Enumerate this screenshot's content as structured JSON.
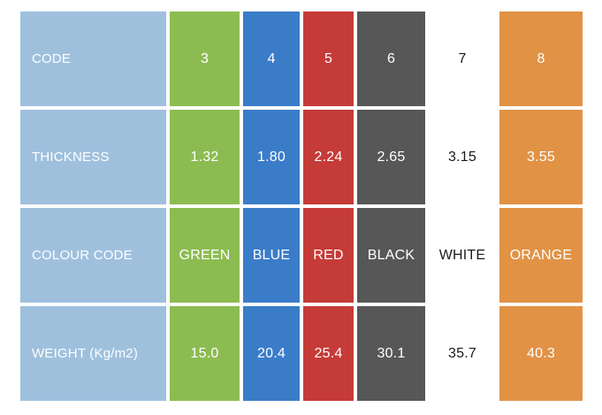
{
  "chart_data": {
    "type": "table",
    "title": "",
    "rows": [
      {
        "header": "CODE",
        "values": [
          "3",
          "4",
          "5",
          "6",
          "7",
          "8"
        ]
      },
      {
        "header": "THICKNESS",
        "values": [
          "1.32",
          "1.80",
          "2.24",
          "2.65",
          "3.15",
          "3.55"
        ]
      },
      {
        "header": "COLOUR CODE",
        "values": [
          "GREEN",
          "BLUE",
          "RED",
          "BLACK",
          "WHITE",
          "ORANGE"
        ]
      },
      {
        "header": "WEIGHT (Kg/m2)",
        "values": [
          "15.0",
          "20.4",
          "25.4",
          "30.1",
          "35.7",
          "40.3"
        ]
      }
    ],
    "columns": [
      {
        "name": "green-column",
        "color": "#8CBC51",
        "text_color": "#FFFFFF"
      },
      {
        "name": "blue-column",
        "color": "#3B7CC9",
        "text_color": "#FFFFFF"
      },
      {
        "name": "red-column",
        "color": "#C53B38",
        "text_color": "#FFFFFF"
      },
      {
        "name": "black-column",
        "color": "#575757",
        "text_color": "#FFFFFF"
      },
      {
        "name": "white-column",
        "color": "#FFFFFF",
        "text_color": "#1A1A1A"
      },
      {
        "name": "orange-column",
        "color": "#E19245",
        "text_color": "#FFFFFF"
      }
    ],
    "header_column": {
      "color": "#9FC0DD",
      "text_color": "#FFFFFF"
    },
    "background": "#FFFFFF",
    "grid": false,
    "legend": false
  }
}
